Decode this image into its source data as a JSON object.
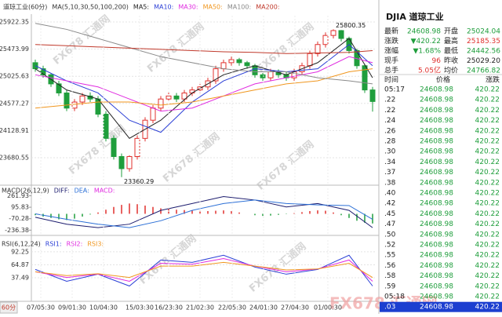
{
  "chart_data": [
    {
      "type": "candlestick",
      "title": "道琼工业(60分)",
      "indicator": "MA(5,10,30,50,100,200)",
      "xlim": [
        -0.5,
        43.5
      ],
      "ylim": [
        23240,
        26026
      ],
      "grid": true,
      "yticks": [
        25922.35,
        25473.99,
        25025.63,
        24577.27,
        24128.91,
        23680.55
      ],
      "up_color": "#e0312e",
      "down_color": "#1f9e3c",
      "candles": {
        "open": [
          25250,
          25150,
          25050,
          24900,
          24750,
          24500,
          24600,
          24700,
          24650,
          24400,
          24000,
          23700,
          23500,
          23700,
          24000,
          24300,
          24500,
          24650,
          24700,
          24650,
          24750,
          24800,
          24850,
          24950,
          25150,
          25250,
          25300,
          25250,
          25200,
          25050,
          25000,
          25100,
          25050,
          25000,
          25100,
          25200,
          25400,
          25550,
          25700,
          25780,
          25650,
          25450,
          25200,
          24800
        ],
        "high": [
          25300,
          25200,
          25080,
          24950,
          24800,
          24650,
          24750,
          24760,
          24700,
          24450,
          24050,
          23750,
          23720,
          24050,
          24350,
          24550,
          24700,
          24760,
          24750,
          24800,
          24850,
          24900,
          25000,
          25200,
          25300,
          25350,
          25330,
          25280,
          25230,
          25080,
          25150,
          25140,
          25100,
          25150,
          25250,
          25450,
          25600,
          25750,
          25800.35,
          25790,
          25680,
          25480,
          25230,
          24850
        ],
        "low": [
          25100,
          25000,
          24850,
          24700,
          24450,
          24450,
          24550,
          24600,
          24350,
          23950,
          23650,
          23360.29,
          23450,
          23650,
          23950,
          24250,
          24450,
          24600,
          24600,
          24600,
          24700,
          24750,
          24800,
          24900,
          25100,
          25200,
          25200,
          25150,
          25000,
          24950,
          24950,
          25000,
          24950,
          24950,
          25050,
          25150,
          25350,
          25500,
          25650,
          25600,
          25400,
          25150,
          24750,
          24442.56
        ],
        "close": [
          25150,
          25050,
          24900,
          24750,
          24500,
          24600,
          24700,
          24650,
          24400,
          24000,
          23700,
          23500,
          23700,
          24000,
          24300,
          24500,
          24650,
          24700,
          24650,
          24750,
          24800,
          24850,
          24950,
          25150,
          25250,
          25300,
          25250,
          25200,
          25050,
          25000,
          25100,
          25050,
          25000,
          25100,
          25200,
          25400,
          25550,
          25700,
          25780,
          25650,
          25450,
          25200,
          24800,
          24608.98
        ]
      },
      "series": [
        {
          "name": "MA5:",
          "color": "#222222",
          "x": [
            0,
            4,
            8,
            12,
            16,
            20,
            24,
            28,
            32,
            36,
            40,
            43
          ],
          "values": [
            25150,
            24800,
            24650,
            24000,
            24300,
            24750,
            25050,
            25200,
            25050,
            25250,
            25650,
            25000
          ]
        },
        {
          "name": "MA10:",
          "color": "#2b3fd6",
          "x": [
            0,
            4,
            8,
            12,
            16,
            20,
            24,
            28,
            32,
            36,
            40,
            43
          ],
          "values": [
            25200,
            24950,
            24750,
            24300,
            24100,
            24600,
            24950,
            25150,
            25100,
            25150,
            25550,
            25200
          ]
        },
        {
          "name": "MA30:",
          "color": "#e02be0",
          "x": [
            0,
            4,
            8,
            12,
            16,
            20,
            24,
            28,
            32,
            36,
            40,
            43
          ],
          "values": [
            25050,
            24950,
            24850,
            24650,
            24450,
            24500,
            24700,
            24900,
            25000,
            25100,
            25350,
            25250
          ]
        },
        {
          "name": "MA50:",
          "color": "#f0961e",
          "x": [
            0,
            4,
            8,
            12,
            16,
            20,
            24,
            28,
            32,
            36,
            40,
            43
          ],
          "values": [
            24500,
            24550,
            24600,
            24600,
            24550,
            24600,
            24700,
            24800,
            24900,
            24950,
            25100,
            25150
          ]
        },
        {
          "name": "MA100:",
          "color": "#8a8a8a",
          "x": [
            0,
            4,
            8,
            12,
            16,
            20,
            24,
            28,
            32,
            36,
            40,
            43
          ],
          "values": [
            25900,
            25800,
            25650,
            25500,
            25350,
            25250,
            25150,
            25100,
            25100,
            25000,
            24950,
            24900
          ]
        },
        {
          "name": "MA200:",
          "color": "#c0392b",
          "x": [
            0,
            4,
            8,
            12,
            16,
            20,
            24,
            28,
            32,
            36,
            40,
            43
          ],
          "values": [
            25550,
            25530,
            25510,
            25490,
            25470,
            25450,
            25430,
            25420,
            25400,
            25410,
            25420,
            25450
          ]
        }
      ]
    },
    {
      "type": "bar",
      "title": "MACD(26,12,9)",
      "xlim": [
        -0.5,
        43.5
      ],
      "ylim": [
        -290,
        370
      ],
      "grid": false,
      "yticks": [
        261.93,
        95.83,
        -70.28,
        -236.38
      ],
      "series": [
        {
          "name": "DIFF:",
          "color": "#1c1c6e",
          "x": [
            0,
            4,
            8,
            12,
            16,
            20,
            24,
            28,
            32,
            36,
            40,
            43
          ],
          "values": [
            -50,
            -150,
            -200,
            -150,
            50,
            150,
            250,
            200,
            100,
            150,
            50,
            -200
          ]
        },
        {
          "name": "DEA:",
          "color": "#2b6fd6",
          "x": [
            0,
            4,
            8,
            12,
            16,
            20,
            24,
            28,
            32,
            36,
            40,
            43
          ],
          "values": [
            0,
            -80,
            -150,
            -200,
            -100,
            50,
            150,
            200,
            150,
            130,
            120,
            -80
          ]
        }
      ],
      "histogram": {
        "name": "MACD:",
        "color": "#e02be0",
        "up_color": "#e0312e",
        "down_color": "#1f9e3c",
        "values": [
          -20,
          -40,
          -60,
          -80,
          -90,
          -70,
          -40,
          -10,
          20,
          60,
          100,
          130,
          150,
          140,
          120,
          100,
          80,
          70,
          60,
          55,
          50,
          45,
          40,
          45,
          50,
          40,
          20,
          0,
          -20,
          -30,
          -25,
          -15,
          -5,
          10,
          25,
          40,
          50,
          45,
          20,
          -20,
          -60,
          -100,
          -130,
          -140
        ]
      }
    },
    {
      "type": "line",
      "title": "RSI(6,12,24)",
      "xlim": [
        -0.5,
        43.5
      ],
      "ylim": [
        -9,
        117
      ],
      "grid": true,
      "yticks": [
        92.25,
        64.87,
        37.49
      ],
      "xticks": [
        {
          "value": 0.7,
          "label": "07/05:30"
        },
        {
          "value": 4.7,
          "label": "09/01:30"
        },
        {
          "value": 8.7,
          "label": "10/04:30"
        },
        {
          "value": 13.3,
          "label": "15/03:30"
        },
        {
          "value": 17,
          "label": "16/23:30"
        },
        {
          "value": 21,
          "label": "21/02:30"
        },
        {
          "value": 25.1,
          "label": "22/05:30"
        },
        {
          "value": 29.1,
          "label": "24/01:30"
        },
        {
          "value": 33.1,
          "label": "27/04:30"
        },
        {
          "value": 37.3,
          "label": "01/00:30"
        }
      ],
      "series": [
        {
          "name": "RSI1:",
          "color": "#2b3fd6",
          "x": [
            0,
            4,
            8,
            12,
            16,
            20,
            24,
            28,
            32,
            36,
            40,
            43
          ],
          "values": [
            55,
            30,
            45,
            20,
            75,
            70,
            85,
            60,
            45,
            55,
            85,
            20
          ]
        },
        {
          "name": "RSI2:",
          "color": "#e02be0",
          "x": [
            0,
            4,
            8,
            12,
            16,
            20,
            24,
            28,
            32,
            36,
            40,
            43
          ],
          "values": [
            50,
            38,
            45,
            30,
            68,
            66,
            78,
            62,
            50,
            56,
            75,
            30
          ]
        },
        {
          "name": "RSI3:",
          "color": "#f0961e",
          "x": [
            0,
            4,
            8,
            12,
            16,
            20,
            24,
            28,
            32,
            36,
            40,
            43
          ],
          "values": [
            50,
            42,
            46,
            38,
            62,
            62,
            70,
            62,
            54,
            56,
            68,
            38
          ]
        }
      ]
    }
  ],
  "period_button": "60分",
  "watermark": "FX678 汇通网",
  "quote": {
    "title": "DJIA 道琼工业",
    "stats": [
      [
        {
          "label": "最新",
          "value": "24608.98",
          "color": "#1f9e3c"
        },
        {
          "label": "开盘",
          "value": "25024.04",
          "color": "#1f9e3c"
        }
      ],
      [
        {
          "label": "涨跌",
          "value": "▼420.22",
          "color": "#1f9e3c"
        },
        {
          "label": "最高",
          "value": "25185.35",
          "color": "#e0312e"
        }
      ],
      [
        {
          "label": "涨幅",
          "value": "▼1.68%",
          "color": "#1f9e3c"
        },
        {
          "label": "最低",
          "value": "24442.56",
          "color": "#1f9e3c"
        }
      ],
      [
        {
          "label": "现手",
          "value": "96",
          "color": "#e0312e"
        },
        {
          "label": "昨收",
          "value": "25029.20",
          "color": "#222222"
        }
      ],
      [
        {
          "label": "总手",
          "value": "5.05亿",
          "color": "#e0312e"
        },
        {
          "label": "均价",
          "value": "24766.82",
          "color": "#1f9e3c"
        }
      ]
    ],
    "ticks_header": [
      "时间",
      "价格",
      "涨跌"
    ],
    "ticks": [
      [
        "05:17",
        "24608.98",
        "420.22"
      ],
      [
        ".22",
        "24608.98",
        "420.22"
      ],
      [
        ".22",
        "24608.98",
        "420.22"
      ],
      [
        ".24",
        "24608.98",
        "420.22"
      ],
      [
        ".26",
        "24608.98",
        "420.22"
      ],
      [
        ".28",
        "24608.98",
        "420.22"
      ],
      [
        ".30",
        "24608.98",
        "420.22"
      ],
      [
        ".34",
        "24608.98",
        "420.22"
      ],
      [
        ".37",
        "24608.98",
        "420.22"
      ],
      [
        ".38",
        "24608.98",
        "420.22"
      ],
      [
        ".40",
        "24608.98",
        "420.22"
      ],
      [
        ".42",
        "24608.98",
        "420.22"
      ],
      [
        ".45",
        "24608.98",
        "420.22"
      ],
      [
        ".47",
        "24608.98",
        "420.22"
      ],
      [
        ".50",
        "24608.98",
        "420.22"
      ],
      [
        ".52",
        "24608.98",
        "420.22"
      ],
      [
        ".55",
        "24608.98",
        "420.22"
      ],
      [
        ".56",
        "24608.98",
        "420.22"
      ],
      [
        ".58",
        "24608.98",
        "420.22"
      ],
      [
        ".59",
        "24608.98",
        "420.22"
      ],
      [
        "05:18",
        "24608.98",
        "420.22"
      ],
      [
        ".03",
        "24608.98",
        "420.22"
      ]
    ]
  }
}
